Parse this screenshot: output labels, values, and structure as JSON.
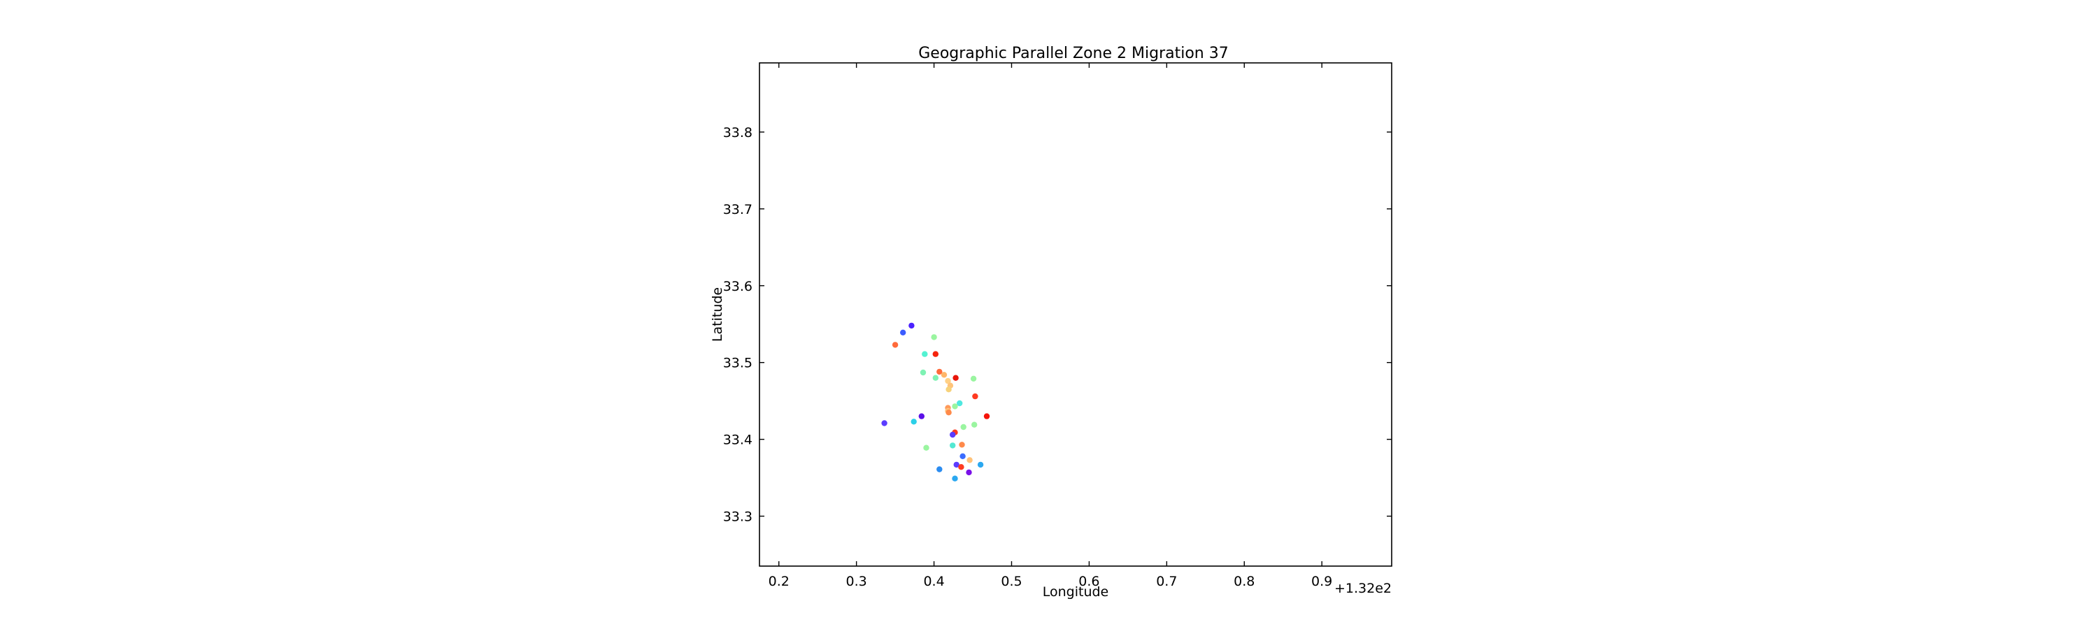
{
  "chart_data": {
    "type": "scatter",
    "title": "Geographic Parallel Zone 2 Migration 37",
    "xlabel": "Longitude",
    "ylabel": "Latitude",
    "x_offset_label": "+1.32e2",
    "xlim": [
      0.175,
      0.99
    ],
    "ylim": [
      33.235,
      33.89
    ],
    "x_ticks": [
      0.2,
      0.3,
      0.4,
      0.5,
      0.6,
      0.7,
      0.8,
      0.9
    ],
    "x_tick_labels": [
      "0.2",
      "0.3",
      "0.4",
      "0.5",
      "0.6",
      "0.7",
      "0.8",
      "0.9"
    ],
    "y_ticks": [
      33.3,
      33.4,
      33.5,
      33.6,
      33.7,
      33.8
    ],
    "y_tick_labels": [
      "33.3",
      "33.4",
      "33.5",
      "33.6",
      "33.7",
      "33.8"
    ],
    "grid": false,
    "points": [
      {
        "x": 0.371,
        "y": 33.548,
        "color": "#4b21ff"
      },
      {
        "x": 0.36,
        "y": 33.539,
        "color": "#3b5cff"
      },
      {
        "x": 0.4,
        "y": 33.533,
        "color": "#9af5a0"
      },
      {
        "x": 0.35,
        "y": 33.523,
        "color": "#ff6a3a"
      },
      {
        "x": 0.388,
        "y": 33.511,
        "color": "#53f2d2"
      },
      {
        "x": 0.402,
        "y": 33.511,
        "color": "#f5240d"
      },
      {
        "x": 0.386,
        "y": 33.487,
        "color": "#7ff2b4"
      },
      {
        "x": 0.407,
        "y": 33.488,
        "color": "#ff6a3a"
      },
      {
        "x": 0.413,
        "y": 33.484,
        "color": "#ffb66a"
      },
      {
        "x": 0.402,
        "y": 33.48,
        "color": "#7ff2b4"
      },
      {
        "x": 0.428,
        "y": 33.48,
        "color": "#e8150a"
      },
      {
        "x": 0.451,
        "y": 33.479,
        "color": "#9af5a0"
      },
      {
        "x": 0.418,
        "y": 33.476,
        "color": "#ffd085"
      },
      {
        "x": 0.421,
        "y": 33.47,
        "color": "#ffc37a"
      },
      {
        "x": 0.419,
        "y": 33.465,
        "color": "#f7d27a"
      },
      {
        "x": 0.453,
        "y": 33.456,
        "color": "#ff3a20"
      },
      {
        "x": 0.433,
        "y": 33.447,
        "color": "#4fe8e0"
      },
      {
        "x": 0.427,
        "y": 33.443,
        "color": "#9af5a0"
      },
      {
        "x": 0.418,
        "y": 33.441,
        "color": "#ff9a5a"
      },
      {
        "x": 0.418,
        "y": 33.437,
        "color": "#ffc37a"
      },
      {
        "x": 0.419,
        "y": 33.435,
        "color": "#ff8a4a"
      },
      {
        "x": 0.468,
        "y": 33.43,
        "color": "#f5140a"
      },
      {
        "x": 0.384,
        "y": 33.43,
        "color": "#5b10e8"
      },
      {
        "x": 0.374,
        "y": 33.423,
        "color": "#2bd0e8"
      },
      {
        "x": 0.336,
        "y": 33.421,
        "color": "#5b3cff"
      },
      {
        "x": 0.452,
        "y": 33.419,
        "color": "#9af5a0"
      },
      {
        "x": 0.438,
        "y": 33.416,
        "color": "#9af5a0"
      },
      {
        "x": 0.427,
        "y": 33.409,
        "color": "#ff3a20"
      },
      {
        "x": 0.424,
        "y": 33.406,
        "color": "#5b3cff"
      },
      {
        "x": 0.436,
        "y": 33.393,
        "color": "#ff8a4a"
      },
      {
        "x": 0.424,
        "y": 33.392,
        "color": "#53e8d2"
      },
      {
        "x": 0.39,
        "y": 33.389,
        "color": "#9af5a0"
      },
      {
        "x": 0.437,
        "y": 33.378,
        "color": "#3b6cff"
      },
      {
        "x": 0.446,
        "y": 33.373,
        "color": "#ffc37a"
      },
      {
        "x": 0.46,
        "y": 33.367,
        "color": "#2ba8f0"
      },
      {
        "x": 0.429,
        "y": 33.367,
        "color": "#5b3cff"
      },
      {
        "x": 0.435,
        "y": 33.364,
        "color": "#ff3a20"
      },
      {
        "x": 0.407,
        "y": 33.361,
        "color": "#2b8cf0"
      },
      {
        "x": 0.445,
        "y": 33.357,
        "color": "#7a10e8"
      },
      {
        "x": 0.427,
        "y": 33.349,
        "color": "#2ba8f0"
      }
    ]
  }
}
